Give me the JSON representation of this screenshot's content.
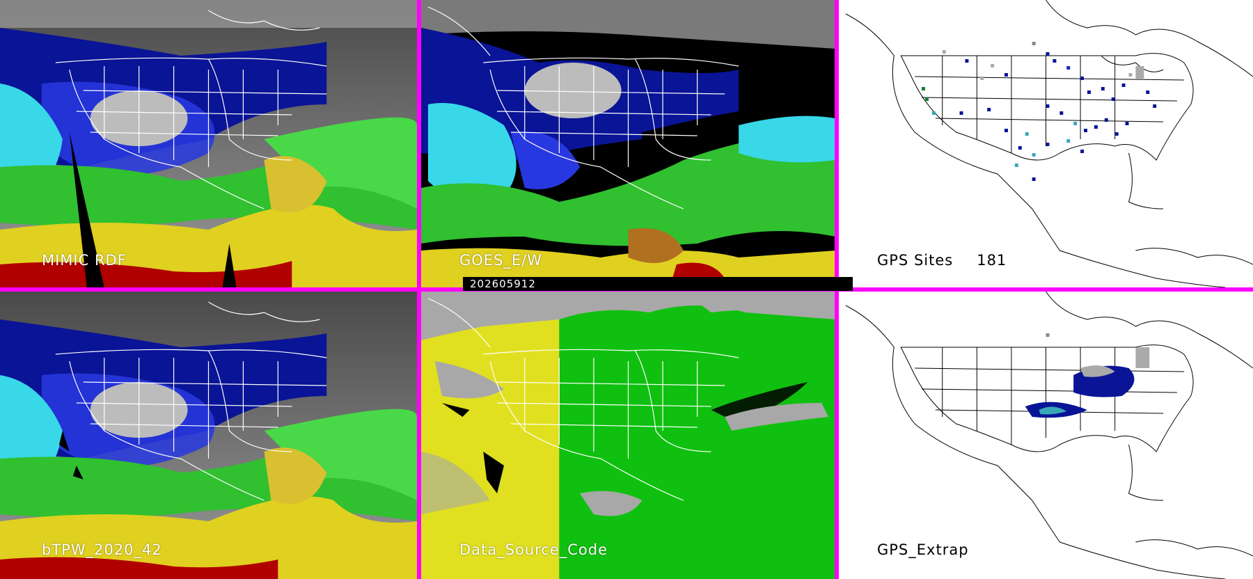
{
  "timestamp": "202605912",
  "colors": {
    "divider": "#ff00ff",
    "land_gray": "#bfbfbf",
    "dark_blue": "#0a1496",
    "blue": "#2838e0",
    "cyan": "#38d8e8",
    "green": "#30c030",
    "yellow": "#e0d020",
    "red": "#b00000",
    "source_yellow": "#e0e020",
    "source_green": "#10c010",
    "source_gray": "#a8a8a8"
  },
  "panels": {
    "mimic_rdf": {
      "label": "MIMIC RDF"
    },
    "goes_ew": {
      "label": "GOES_E/W"
    },
    "gps_sites": {
      "label": "GPS Sites",
      "count": "181"
    },
    "btpw": {
      "label": "bTPW_2020_42"
    },
    "data_source": {
      "label": "Data_Source_Code"
    },
    "gps_extrap": {
      "label": "GPS_Extrap"
    }
  }
}
